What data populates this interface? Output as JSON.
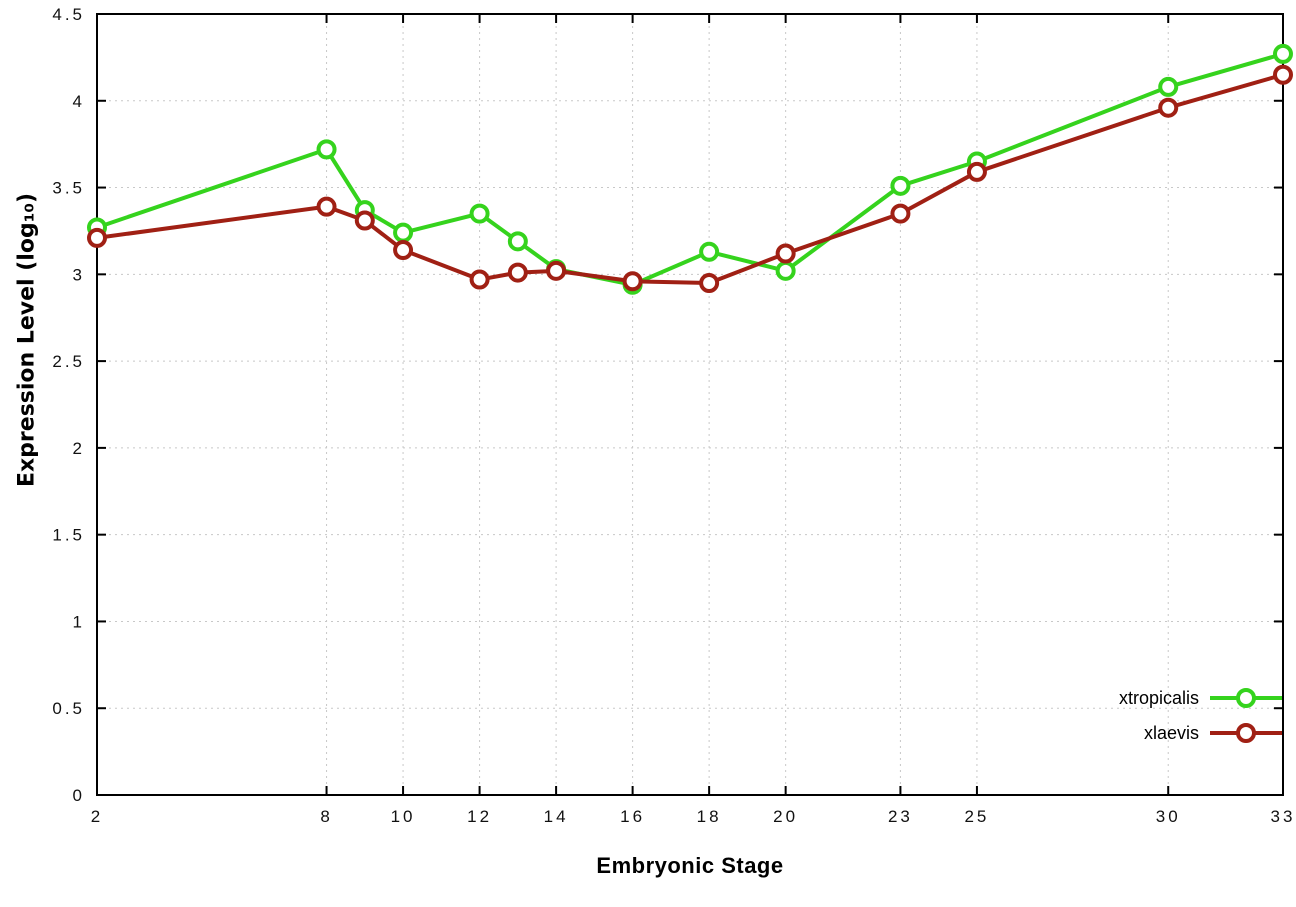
{
  "chart_data": {
    "type": "line",
    "title": "",
    "xlabel": "Embryonic Stage",
    "ylabel": "Expression Level (log₁₀)",
    "x": [
      2,
      8,
      9,
      10,
      12,
      13,
      14,
      16,
      18,
      20,
      23,
      25,
      30,
      33
    ],
    "series": [
      {
        "name": "xtropicalis",
        "color": "#35d31d",
        "values": [
          3.27,
          3.72,
          3.37,
          3.24,
          3.35,
          3.19,
          3.03,
          2.94,
          3.13,
          3.02,
          3.51,
          3.65,
          4.08,
          4.27
        ]
      },
      {
        "name": "xlaevis",
        "color": "#a02014",
        "values": [
          3.21,
          3.39,
          3.31,
          3.14,
          2.97,
          3.01,
          3.02,
          2.96,
          2.95,
          3.12,
          3.35,
          3.59,
          3.96,
          4.15
        ]
      }
    ],
    "xlim": [
      2,
      33
    ],
    "ylim": [
      0,
      4.5
    ],
    "x_ticks": {
      "values": [
        2,
        8,
        10,
        12,
        14,
        16,
        18,
        20,
        23,
        25,
        30,
        33
      ],
      "labels": [
        "2",
        "8",
        "10",
        "12",
        "14",
        "16",
        "18",
        "20",
        "23",
        "25",
        "30",
        "33"
      ]
    },
    "y_ticks": {
      "values": [
        0,
        0.5,
        1,
        1.5,
        2,
        2.5,
        3,
        3.5,
        4,
        4.5
      ],
      "labels": [
        "0",
        "0.5",
        "1",
        "1.5",
        "2",
        "2.5",
        "3",
        "3.5",
        "4",
        "4.5"
      ]
    },
    "grid": true,
    "grid_color": "#c8c8c8",
    "border_color": "#000000",
    "marker": "open-circle",
    "legend_position": "bottom-right",
    "background": "#ffffff"
  }
}
